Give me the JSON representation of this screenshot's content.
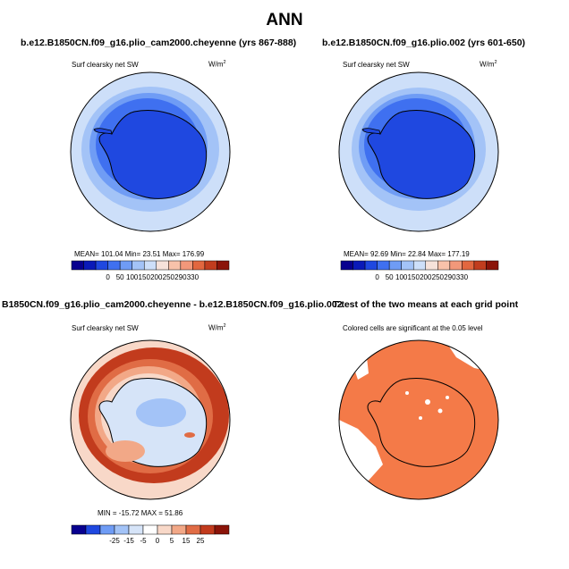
{
  "main_title": "ANN",
  "panels": [
    {
      "title": "b.e12.B1850CN.f09_g16.plio_cam2000.cheyenne (yrs 867-888)",
      "variable": "Surf clearsky net SW",
      "units": "W/m",
      "units_sup": "2",
      "stats": "MEAN= 101.04   Min=   23.51   Max=  176.99",
      "colorbar_ticks": [
        "0",
        "50",
        "100",
        "150",
        "200",
        "250",
        "290",
        "330"
      ]
    },
    {
      "title": "b.e12.B1850CN.f09_g16.plio.002 (yrs 601-650)",
      "variable": "Surf clearsky net SW",
      "units": "W/m",
      "units_sup": "2",
      "stats": "MEAN=  92.69   Min=   22.84   Max=  177.19",
      "colorbar_ticks": [
        "0",
        "50",
        "100",
        "150",
        "200",
        "250",
        "290",
        "330"
      ]
    },
    {
      "title": "B1850CN.f09_g16.plio_cam2000.cheyenne - b.e12.B1850CN.f09_g16.plio.002",
      "variable": "Surf clearsky net SW",
      "units": "W/m",
      "units_sup": "2",
      "stats": "MIN = -15.72  MAX =  51.86",
      "colorbar_ticks": [
        "-25",
        "-15",
        "-5",
        "0",
        "5",
        "15",
        "25"
      ]
    },
    {
      "title": "T-test of the two means at each grid point",
      "subtitle": "Colored cells are significant at the 0.05 level"
    }
  ],
  "colors": {
    "abs_scale": [
      "#08008f",
      "#0a1ab8",
      "#1f48e0",
      "#3f70f0",
      "#6f9cf5",
      "#a3c3f7",
      "#cddff9",
      "#f6e2da",
      "#f8c2aa",
      "#f2987a",
      "#e2673f",
      "#c13d1e",
      "#8b1409"
    ],
    "diff_scale": [
      "#08008f",
      "#1f48e0",
      "#6f9cf5",
      "#a3c3f7",
      "#d6e4f8",
      "#ffffff",
      "#f8d8c8",
      "#f2a887",
      "#e06c45",
      "#c23b1d",
      "#8b1409"
    ],
    "significance": "#f47a48"
  }
}
